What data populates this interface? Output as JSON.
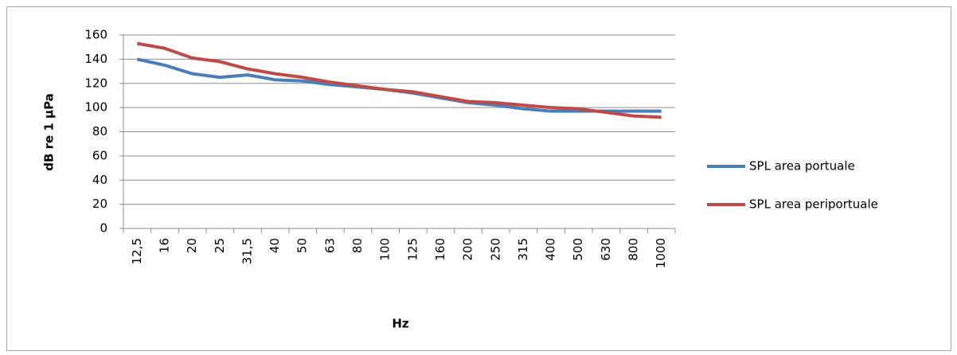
{
  "chart_data": {
    "type": "line",
    "x_label": "Hz",
    "y_label": "dB re 1 µPa",
    "categories": [
      "12,5",
      "16",
      "20",
      "25",
      "31,5",
      "40",
      "50",
      "63",
      "80",
      "100",
      "125",
      "160",
      "200",
      "250",
      "315",
      "400",
      "500",
      "630",
      "800",
      "1000"
    ],
    "series": [
      {
        "name": "SPL area portuale",
        "color": "#4a7ebb",
        "values": [
          140,
          135,
          128,
          125,
          127,
          123,
          122,
          119,
          117,
          115,
          112,
          108,
          104,
          102,
          99,
          97,
          97,
          97,
          97,
          97
        ]
      },
      {
        "name": "SPL area periportuale",
        "color": "#be4b48",
        "values": [
          153,
          149,
          141,
          138,
          132,
          128,
          125,
          121,
          118,
          115,
          113,
          109,
          105,
          104,
          102,
          100,
          99,
          96,
          93,
          92
        ]
      }
    ],
    "ylim": [
      0,
      160
    ],
    "yticks": [
      0,
      20,
      40,
      60,
      80,
      100,
      120,
      140,
      160
    ],
    "grid": true,
    "legend": "right"
  }
}
